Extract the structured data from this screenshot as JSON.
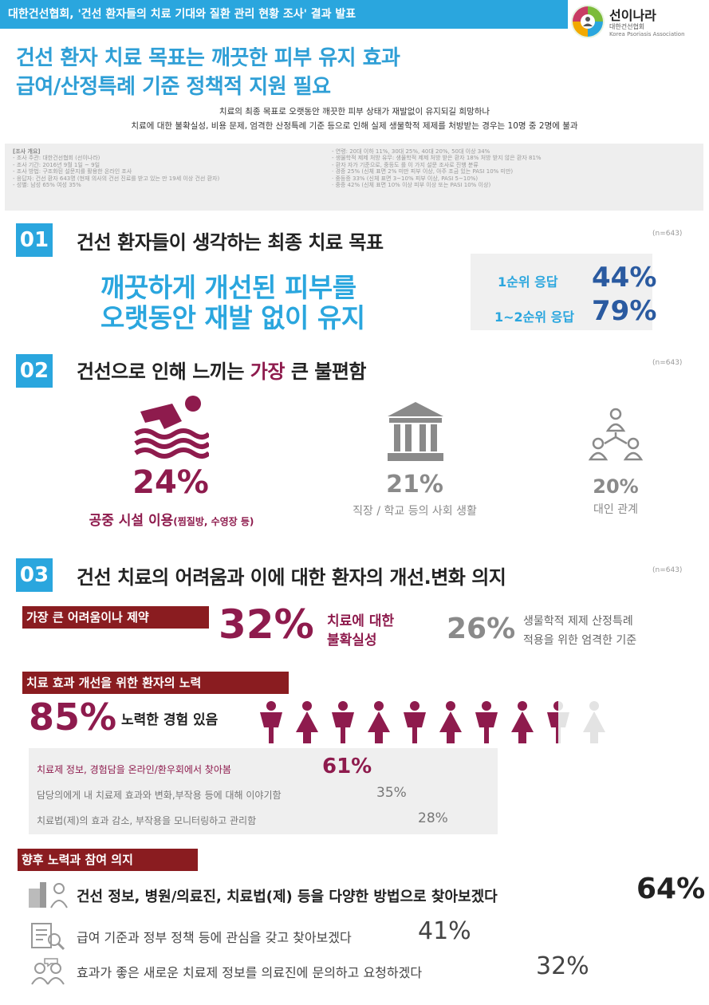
{
  "header": {
    "bar_text": "대한건선협회, '건선 환자들의 치료 기대와 질환 관리 현황 조사' 결과 발표",
    "logo_name": "선이나라",
    "logo_sub_ko": "대한건선협회",
    "logo_sub_en": "Korea Psoriasis Association"
  },
  "headline": {
    "line1": "건선 환자 치료 목표는 깨끗한 피부 유지 효과",
    "line2": "급여/산정특례 기준 정책적 지원 필요"
  },
  "intro": {
    "line1": "치료의 최종 목표로 오랫동안 깨끗한 피부 상태가 재발없이 유지되길 희망하나",
    "line2": "치료에 대한 불확실성, 비용 문제, 엄격한 산정특례 기준 등으로 인해 실제 생물학적 제제를 처방받는 경우는 10명 중 2명에 불과"
  },
  "overview": {
    "heading": "[조사 개요]",
    "left": [
      "- 조사 주관: 대한건선협회 (선이나라)",
      "- 조사 기간: 2016년 9월 1일 ~ 9일",
      "- 조사 방법: 구조화된 설문지를 활용한 온라인 조사",
      "- 응답자: 건선 환자 643명 (현재 의사의 건선 진료를 받고 있는 만 19세 이상 건선 환자)",
      "- 성별: 남성 65% 여성 35%"
    ],
    "right": [
      "- 연령: 20대 이하 11%, 30대 25%, 40대 20%, 50대 이상 34%",
      "- 생물학적 제제 처방 유무: 생물학적 제제 처방 받은 환자 18% 처방 받지 않은 환자 81%",
      "- 환자 자가 기준으로, 중등도 를 이 가지 설문 조사로 진행 분류",
      "  · 경증 25% (신체 표면 2% 미만 피부 이상, 아주 조금 있는 PASI 10% 미만)",
      "  · 중등증 33% (신체 표면 3~10% 피부 이상, PASI 5~10%)",
      "  · 중증 42% (신체 표면 10% 이상 피부 이상 또는 PASI 10% 이상)"
    ]
  },
  "section1": {
    "num": "01",
    "title": "건선 환자들이 생각하는 최종 치료 목표",
    "n": "(n=643)",
    "goal_line1": "깨끗하게 개선된 피부를",
    "goal_line2": "오랫동안 재발 없이 유지",
    "rank1_label": "1순위 응답",
    "rank1_value": "44%",
    "rank12_label": "1~2순위 응답",
    "rank12_value": "79%"
  },
  "section2": {
    "num": "02",
    "title_pre": "건선으로 인해 느끼는 ",
    "title_accent": "가장",
    "title_post": " 큰 불편함",
    "n": "(n=643)",
    "item1_pct": "24%",
    "item1_label": "공중 시설 이용",
    "item1_note": "(찜질방, 수영장 등)",
    "item2_pct": "21%",
    "item2_label": "직장 / 학교 등의 사회 생활",
    "item3_pct": "20%",
    "item3_label": "대인 관계"
  },
  "section3": {
    "num": "03",
    "title": "건선 치료의 어려움과 이에 대한 환자의 개선.변화 의지",
    "n": "(n=643)",
    "diff_label": "가장 큰 어려움이나 제약",
    "diff1_pct": "32%",
    "diff1_line1": "치료에 대한",
    "diff1_line2": "불확실성",
    "diff2_pct": "26%",
    "diff2_line1": "생물학적 제제 산정특례",
    "diff2_line2": "적용을 위한 엄격한 기준",
    "effort_label": "치료 효과 개선을 위한 환자의 노력",
    "effort_pct": "85%",
    "effort_text": "노력한 경험 있음",
    "effort_fraction": 0.85,
    "efforts": [
      {
        "text": "치료제 정보, 경험담을 온라인/환우회에서 찾아봄",
        "value": "61%"
      },
      {
        "text": "담당의에게 내 치료제 효과와 변화,부작용 등에 대해 이야기함",
        "value": "35%"
      },
      {
        "text": "치료법(제)의 효과 감소, 부작용을 모니터링하고 관리함",
        "value": "28%"
      }
    ],
    "future_label": "향후 노력과 참여 의지",
    "future": [
      {
        "text": "건선 정보, 병원/의료진, 치료법(제) 등을 다양한 방법으로 찾아보겠다",
        "value": "64%"
      },
      {
        "text": "급여 기준과 정부 정책 등에 관심을 갖고 찾아보겠다",
        "value": "41%"
      },
      {
        "text": "효과가 좋은 새로운 치료제 정보를 의료진에 문의하고 요청하겠다",
        "value": "32%"
      }
    ]
  },
  "colors": {
    "blue": "#2aa6de",
    "navy": "#2a5aa0",
    "wine": "#8e1b4d",
    "darkred": "#8a1c20",
    "gray": "#8a8a8a"
  }
}
